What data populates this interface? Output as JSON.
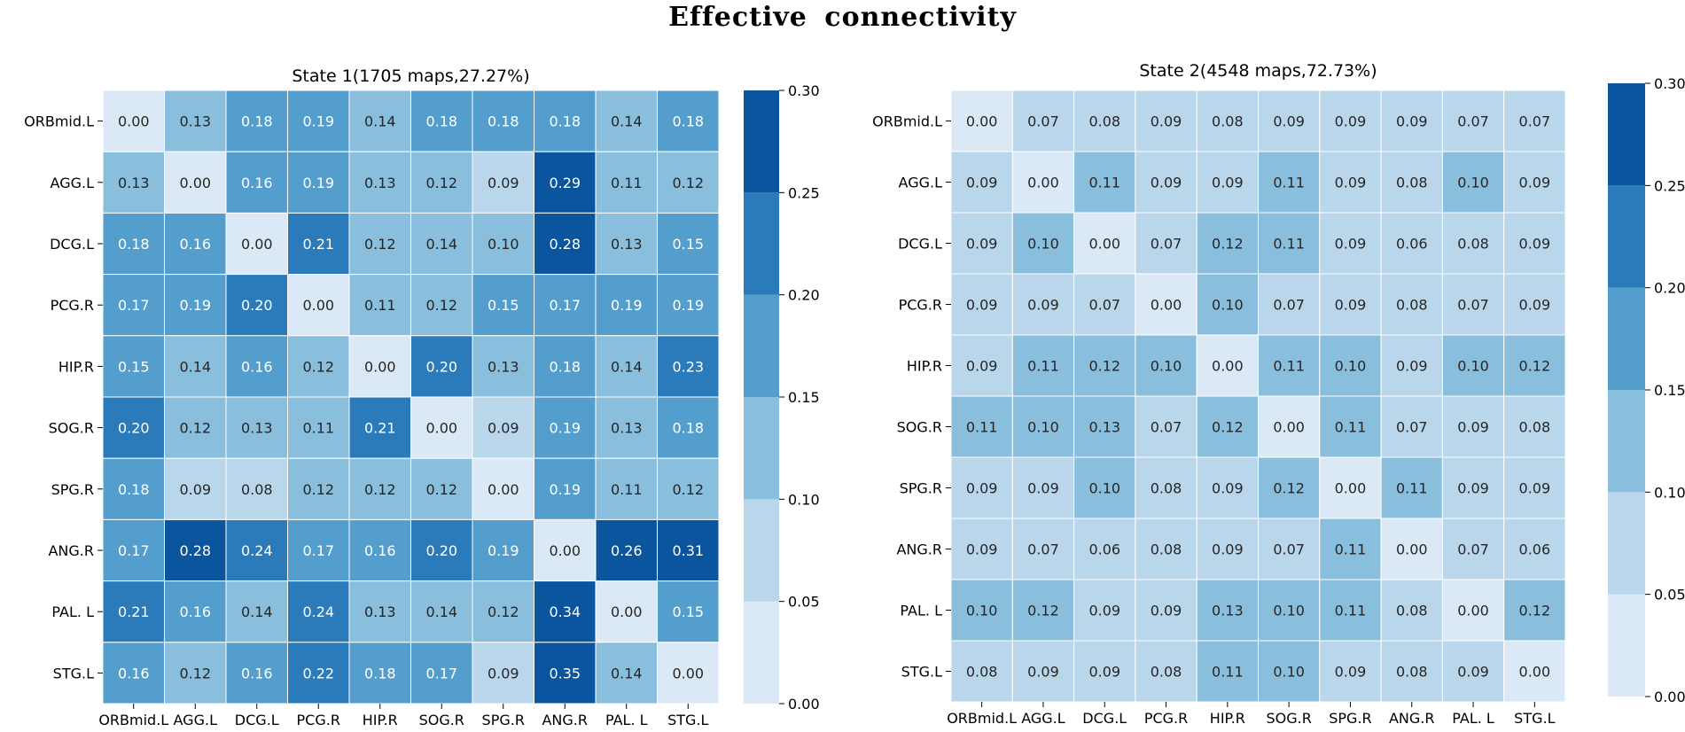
{
  "figure_title": "Effective  connectivity",
  "colors": {
    "colorbar": [
      "#dbe9f6",
      "#bad6eb",
      "#89bedc",
      "#539ecd",
      "#2b7bba",
      "#0b559f"
    ],
    "text_light": "#ffffff",
    "text_dark": "#262626",
    "grid": "#ffffff"
  },
  "chart_data": [
    {
      "type": "heatmap",
      "title": "State 1(1705 maps,27.27%)",
      "rows": [
        "ORBmid.L",
        "AGG.L",
        "DCG.L",
        "PCG.R",
        "HIP.R",
        "SOG.R",
        "SPG.R",
        "ANG.R",
        "PAL. L",
        "STG.L"
      ],
      "cols": [
        "ORBmid.L",
        "AGG.L",
        "DCG.L",
        "PCG.R",
        "HIP.R",
        "SOG.R",
        "SPG.R",
        "ANG.R",
        "PAL. L",
        "STG.L"
      ],
      "values": [
        [
          0.0,
          0.13,
          0.18,
          0.19,
          0.14,
          0.18,
          0.18,
          0.18,
          0.14,
          0.18
        ],
        [
          0.13,
          0.0,
          0.16,
          0.19,
          0.13,
          0.12,
          0.09,
          0.29,
          0.11,
          0.12
        ],
        [
          0.18,
          0.16,
          0.0,
          0.21,
          0.12,
          0.14,
          0.1,
          0.28,
          0.13,
          0.15
        ],
        [
          0.17,
          0.19,
          0.2,
          0.0,
          0.11,
          0.12,
          0.15,
          0.17,
          0.19,
          0.19
        ],
        [
          0.15,
          0.14,
          0.16,
          0.12,
          0.0,
          0.2,
          0.13,
          0.18,
          0.14,
          0.23
        ],
        [
          0.2,
          0.12,
          0.13,
          0.11,
          0.21,
          0.0,
          0.09,
          0.19,
          0.13,
          0.18
        ],
        [
          0.18,
          0.09,
          0.08,
          0.12,
          0.12,
          0.12,
          0.0,
          0.19,
          0.11,
          0.12
        ],
        [
          0.17,
          0.28,
          0.24,
          0.17,
          0.16,
          0.2,
          0.19,
          0.0,
          0.26,
          0.31
        ],
        [
          0.21,
          0.16,
          0.14,
          0.24,
          0.13,
          0.14,
          0.12,
          0.34,
          0.0,
          0.15
        ],
        [
          0.16,
          0.12,
          0.16,
          0.22,
          0.18,
          0.17,
          0.09,
          0.35,
          0.14,
          0.0
        ]
      ],
      "colorbar_range": [
        0.0,
        0.3
      ],
      "colorbar_ticks": [
        "0.00",
        "0.05",
        "0.10",
        "0.15",
        "0.20",
        "0.25",
        "0.30"
      ]
    },
    {
      "type": "heatmap",
      "title": "State 2(4548 maps,72.73%)",
      "rows": [
        "ORBmid.L",
        "AGG.L",
        "DCG.L",
        "PCG.R",
        "HIP.R",
        "SOG.R",
        "SPG.R",
        "ANG.R",
        "PAL. L",
        "STG.L"
      ],
      "cols": [
        "ORBmid.L",
        "AGG.L",
        "DCG.L",
        "PCG.R",
        "HIP.R",
        "SOG.R",
        "SPG.R",
        "ANG.R",
        "PAL. L",
        "STG.L"
      ],
      "values": [
        [
          0.0,
          0.07,
          0.08,
          0.09,
          0.08,
          0.09,
          0.09,
          0.09,
          0.07,
          0.07
        ],
        [
          0.09,
          0.0,
          0.11,
          0.09,
          0.09,
          0.11,
          0.09,
          0.08,
          0.1,
          0.09
        ],
        [
          0.09,
          0.1,
          0.0,
          0.07,
          0.12,
          0.11,
          0.09,
          0.06,
          0.08,
          0.09
        ],
        [
          0.09,
          0.09,
          0.07,
          0.0,
          0.1,
          0.07,
          0.09,
          0.08,
          0.07,
          0.09
        ],
        [
          0.09,
          0.11,
          0.12,
          0.1,
          0.0,
          0.11,
          0.1,
          0.09,
          0.1,
          0.12
        ],
        [
          0.11,
          0.1,
          0.13,
          0.07,
          0.12,
          0.0,
          0.11,
          0.07,
          0.09,
          0.08
        ],
        [
          0.09,
          0.09,
          0.1,
          0.08,
          0.09,
          0.12,
          0.0,
          0.11,
          0.09,
          0.09
        ],
        [
          0.09,
          0.07,
          0.06,
          0.08,
          0.09,
          0.07,
          0.11,
          0.0,
          0.07,
          0.06
        ],
        [
          0.1,
          0.12,
          0.09,
          0.09,
          0.13,
          0.1,
          0.11,
          0.08,
          0.0,
          0.12
        ],
        [
          0.08,
          0.09,
          0.09,
          0.08,
          0.11,
          0.1,
          0.09,
          0.08,
          0.09,
          0.0
        ]
      ],
      "colorbar_range": [
        0.0,
        0.3
      ],
      "colorbar_ticks": [
        "0.00",
        "0.05",
        "0.10",
        "0.15",
        "0.20",
        "0.25",
        "0.30"
      ]
    }
  ]
}
